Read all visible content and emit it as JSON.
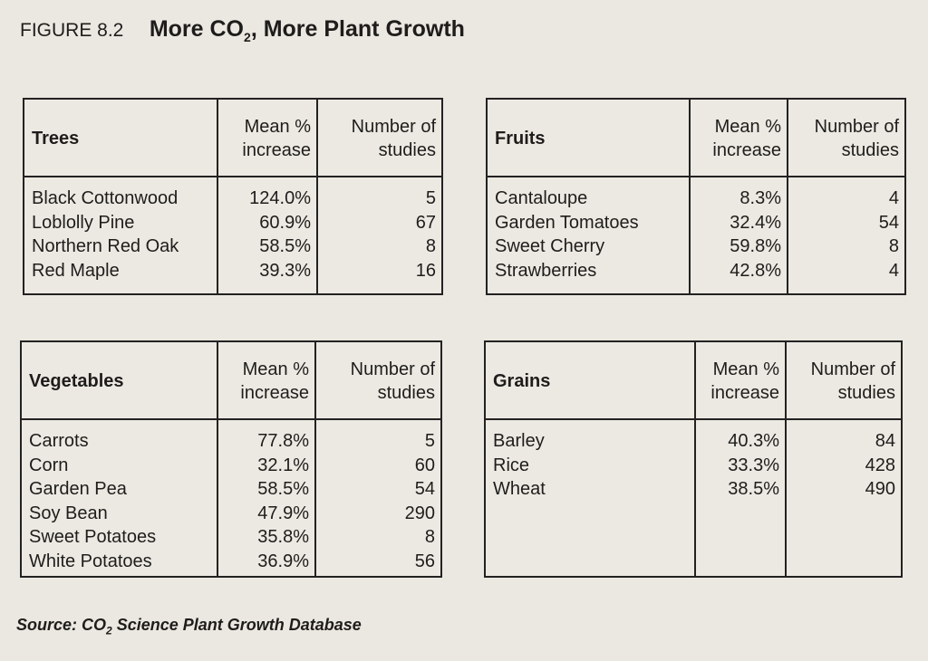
{
  "figure": {
    "label": "FIGURE 8.2",
    "title_part1": "More CO",
    "title_subscript": "2",
    "title_part2": ", More Plant Growth"
  },
  "tables": [
    {
      "category": "Trees",
      "col_mean": "Mean % increase",
      "col_studies": "Number of studies",
      "rows": [
        {
          "name": "Black Cottonwood",
          "mean": "124.0%",
          "studies": "5"
        },
        {
          "name": "Loblolly Pine",
          "mean": "60.9%",
          "studies": "67"
        },
        {
          "name": "Northern Red Oak",
          "mean": "58.5%",
          "studies": "8"
        },
        {
          "name": "Red Maple",
          "mean": "39.3%",
          "studies": "16"
        }
      ]
    },
    {
      "category": "Fruits",
      "col_mean": "Mean % increase",
      "col_studies": "Number of studies",
      "rows": [
        {
          "name": "Cantaloupe",
          "mean": "8.3%",
          "studies": "4"
        },
        {
          "name": "Garden Tomatoes",
          "mean": "32.4%",
          "studies": "54"
        },
        {
          "name": "Sweet Cherry",
          "mean": "59.8%",
          "studies": "8"
        },
        {
          "name": "Strawberries",
          "mean": "42.8%",
          "studies": "4"
        }
      ]
    },
    {
      "category": "Vegetables",
      "col_mean": "Mean % increase",
      "col_studies": "Number of studies",
      "rows": [
        {
          "name": "Carrots",
          "mean": "77.8%",
          "studies": "5"
        },
        {
          "name": "Corn",
          "mean": "32.1%",
          "studies": "60"
        },
        {
          "name": "Garden Pea",
          "mean": "58.5%",
          "studies": "54"
        },
        {
          "name": "Soy Bean",
          "mean": "47.9%",
          "studies": "290"
        },
        {
          "name": "Sweet Potatoes",
          "mean": "35.8%",
          "studies": "8"
        },
        {
          "name": "White Potatoes",
          "mean": "36.9%",
          "studies": "56"
        }
      ]
    },
    {
      "category": "Grains",
      "col_mean": "Mean % increase",
      "col_studies": "Number of studies",
      "rows": [
        {
          "name": "Barley",
          "mean": "40.3%",
          "studies": "84"
        },
        {
          "name": "Rice",
          "mean": "33.3%",
          "studies": "428"
        },
        {
          "name": "Wheat",
          "mean": "38.5%",
          "studies": "490"
        }
      ]
    }
  ],
  "source": {
    "prefix": "Source: CO",
    "subscript": "2",
    "suffix": " Science Plant Growth Database"
  }
}
